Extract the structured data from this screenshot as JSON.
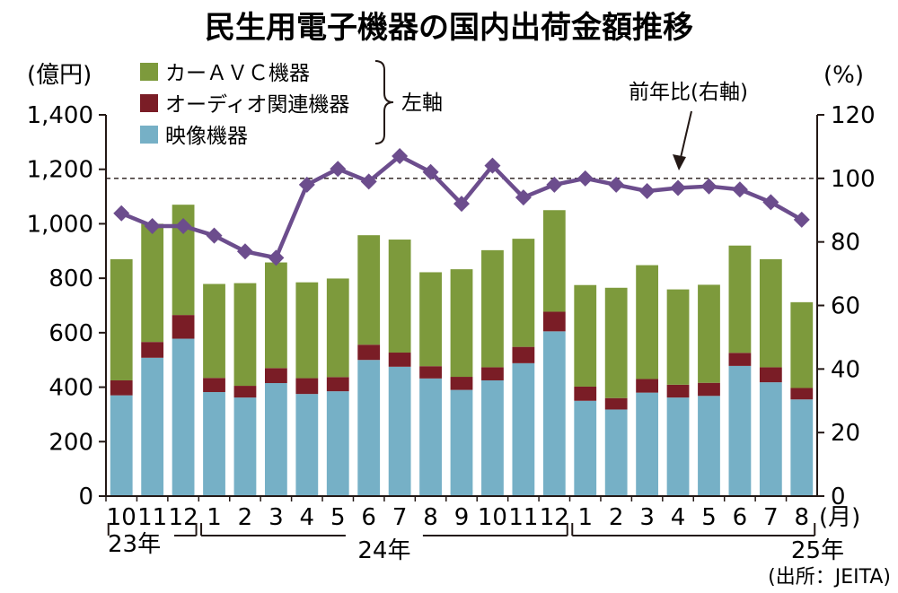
{
  "chart_data": {
    "type": "bar+line",
    "title": "民生用電子機器の国内出荷金額推移",
    "y_left_unit": "(億円)",
    "y_right_unit": "(%)",
    "y_left_ticks": [
      "0",
      "200",
      "400",
      "600",
      "800",
      "1,000",
      "1,200",
      "1,400"
    ],
    "y_right_ticks": [
      "0",
      "20",
      "40",
      "60",
      "80",
      "100",
      "120"
    ],
    "ylim_left": [
      0,
      1400
    ],
    "ylim_right": [
      0,
      120
    ],
    "categories": [
      "10",
      "11",
      "12",
      "1",
      "2",
      "3",
      "4",
      "5",
      "6",
      "7",
      "8",
      "9",
      "10",
      "11",
      "12",
      "1",
      "2",
      "3",
      "4",
      "5",
      "6",
      "7",
      "8"
    ],
    "month_unit": "(月)",
    "years": [
      {
        "label": "23年",
        "from": 0,
        "to": 2
      },
      {
        "label": "24年",
        "from": 3,
        "to": 14
      },
      {
        "label": "25年",
        "from": 15,
        "to": 22
      }
    ],
    "stacked": true,
    "series": [
      {
        "name": "映像機器",
        "color": "#76b0c6",
        "values": [
          370,
          508,
          578,
          382,
          362,
          415,
          375,
          385,
          500,
          475,
          432,
          390,
          425,
          488,
          605,
          350,
          318,
          380,
          362,
          368,
          478,
          418,
          355
        ]
      },
      {
        "name": "オーディオ関連機器",
        "color": "#7a1d26",
        "values": [
          55,
          58,
          87,
          52,
          43,
          55,
          58,
          52,
          56,
          52,
          45,
          48,
          48,
          60,
          72,
          52,
          42,
          50,
          47,
          48,
          48,
          55,
          42
        ]
      },
      {
        "name": "カーＡＶＣ機器",
        "color": "#7d9a3c",
        "values": [
          445,
          434,
          405,
          345,
          377,
          388,
          352,
          362,
          402,
          415,
          345,
          395,
          430,
          397,
          373,
          373,
          405,
          418,
          350,
          360,
          394,
          397,
          315
        ]
      }
    ],
    "line": {
      "name": "前年比(右軸)",
      "color": "#6c4d8d",
      "values": [
        89,
        85,
        85,
        82,
        77,
        75,
        98,
        103,
        99,
        107,
        102,
        92,
        104,
        94,
        98,
        100,
        98,
        96,
        97,
        97.5,
        96.5,
        92.5,
        87
      ]
    },
    "reference_line_right": 100,
    "bracket_label": "左軸",
    "source": "(出所：JEITA)"
  }
}
